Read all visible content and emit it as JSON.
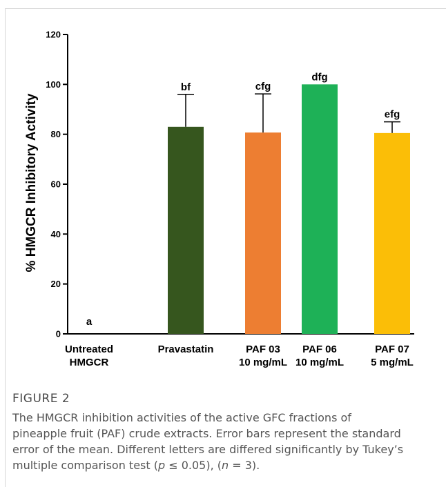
{
  "chart_data": {
    "type": "bar",
    "ylabel": "% HMGCR Inhibitory Activity",
    "xlabel": "",
    "ylim": [
      0,
      120
    ],
    "yticks": [
      0,
      20,
      40,
      60,
      80,
      100,
      120
    ],
    "grid": false,
    "categories": [
      [
        "Untreated",
        "HMGCR"
      ],
      [
        "Pravastatin"
      ],
      [
        "PAF 03",
        "10 mg/mL"
      ],
      [
        "PAF 06",
        "10 mg/mL"
      ],
      [
        "PAF 07",
        "5 mg/mL"
      ]
    ],
    "values": [
      0,
      83,
      80.7,
      100,
      80.5
    ],
    "errors": [
      0,
      13,
      15.5,
      0,
      4.5
    ],
    "letters": [
      "a",
      "bf",
      "cfg",
      "dfg",
      "efg"
    ],
    "colors": [
      "#ffffff",
      "#36561e",
      "#ed7e32",
      "#1eb157",
      "#fbbe07"
    ]
  },
  "figure": {
    "label": "FIGURE 2",
    "caption_lines": [
      [
        "The HMGCR inhibition activities of the active GFC fractions of"
      ],
      [
        "pineapple fruit (PAF) crude extracts. Error bars represent the standard"
      ],
      [
        "error of the mean. Different letters are differed significantly by Tukey’s"
      ],
      [
        "multiple comparison test (",
        "p",
        " ≤ 0.05), (",
        "n",
        " = 3)."
      ]
    ]
  }
}
